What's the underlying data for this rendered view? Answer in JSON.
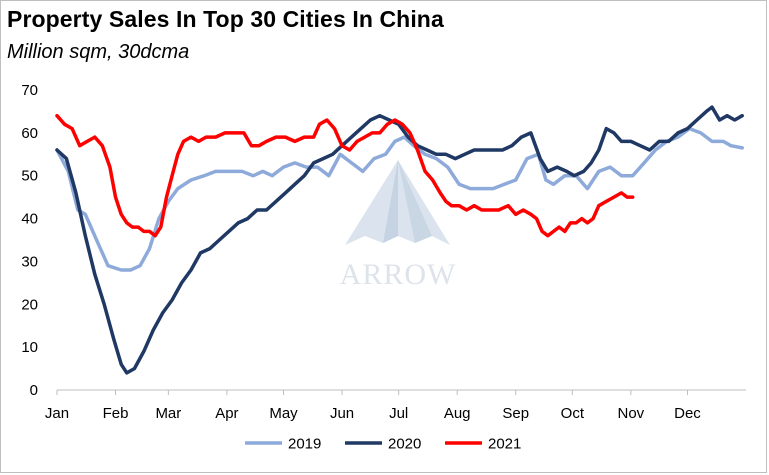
{
  "chart_data": {
    "type": "line",
    "title": "Property Sales In Top 30 Cities In China",
    "subtitle": "Million sqm, 30dcma",
    "x_tick_labels": [
      "Jan",
      "Feb",
      "Mar",
      "Apr",
      "May",
      "Jun",
      "Jul",
      "Aug",
      "Sep",
      "Oct",
      "Nov",
      "Dec"
    ],
    "ylim": [
      0,
      70
    ],
    "y_ticks": [
      0,
      10,
      20,
      30,
      40,
      50,
      60,
      70
    ],
    "grid": false,
    "legend_position": "bottom",
    "watermark": "ARROW",
    "series": [
      {
        "name": "2019",
        "color": "#8eaadb",
        "points": [
          [
            1,
            56
          ],
          [
            7,
            51
          ],
          [
            12,
            42
          ],
          [
            16,
            41
          ],
          [
            23,
            34
          ],
          [
            28,
            29
          ],
          [
            35,
            28
          ],
          [
            40,
            28
          ],
          [
            45,
            29
          ],
          [
            50,
            33
          ],
          [
            55,
            40
          ],
          [
            60,
            44
          ],
          [
            65,
            47
          ],
          [
            72,
            49
          ],
          [
            79,
            50
          ],
          [
            85,
            51
          ],
          [
            92,
            51
          ],
          [
            99,
            51
          ],
          [
            105,
            50
          ],
          [
            110,
            51
          ],
          [
            115,
            50
          ],
          [
            121,
            52
          ],
          [
            127,
            53
          ],
          [
            133,
            52
          ],
          [
            139,
            52
          ],
          [
            145,
            50
          ],
          [
            151,
            55
          ],
          [
            157,
            53
          ],
          [
            163,
            51
          ],
          [
            169,
            54
          ],
          [
            175,
            55
          ],
          [
            180,
            58
          ],
          [
            185,
            59
          ],
          [
            190,
            57
          ],
          [
            196,
            55
          ],
          [
            202,
            54
          ],
          [
            208,
            52
          ],
          [
            214,
            48
          ],
          [
            220,
            47
          ],
          [
            226,
            47
          ],
          [
            232,
            47
          ],
          [
            238,
            48
          ],
          [
            244,
            49
          ],
          [
            250,
            54
          ],
          [
            256,
            55
          ],
          [
            260,
            49
          ],
          [
            264,
            48
          ],
          [
            270,
            50
          ],
          [
            276,
            50
          ],
          [
            282,
            47
          ],
          [
            288,
            51
          ],
          [
            294,
            52
          ],
          [
            300,
            50
          ],
          [
            306,
            50
          ],
          [
            312,
            53
          ],
          [
            318,
            56
          ],
          [
            324,
            58
          ],
          [
            330,
            59
          ],
          [
            336,
            61
          ],
          [
            342,
            60
          ],
          [
            348,
            58
          ],
          [
            354,
            58
          ],
          [
            358,
            57
          ],
          [
            364,
            56.5
          ]
        ]
      },
      {
        "name": "2020",
        "color": "#1f3864",
        "points": [
          [
            1,
            56
          ],
          [
            6,
            54
          ],
          [
            11,
            46
          ],
          [
            16,
            36
          ],
          [
            21,
            27
          ],
          [
            26,
            20
          ],
          [
            31,
            12
          ],
          [
            35,
            6
          ],
          [
            38,
            4
          ],
          [
            42,
            5
          ],
          [
            47,
            9
          ],
          [
            52,
            14
          ],
          [
            57,
            18
          ],
          [
            62,
            21
          ],
          [
            67,
            25
          ],
          [
            72,
            28
          ],
          [
            77,
            32
          ],
          [
            82,
            33
          ],
          [
            87,
            35
          ],
          [
            92,
            37
          ],
          [
            97,
            39
          ],
          [
            102,
            40
          ],
          [
            107,
            42
          ],
          [
            112,
            42
          ],
          [
            117,
            44
          ],
          [
            122,
            46
          ],
          [
            127,
            48
          ],
          [
            132,
            50
          ],
          [
            137,
            53
          ],
          [
            142,
            54
          ],
          [
            147,
            55
          ],
          [
            152,
            57
          ],
          [
            157,
            59
          ],
          [
            162,
            61
          ],
          [
            167,
            63
          ],
          [
            172,
            64
          ],
          [
            177,
            63
          ],
          [
            182,
            62
          ],
          [
            187,
            59
          ],
          [
            192,
            57
          ],
          [
            197,
            56
          ],
          [
            202,
            55
          ],
          [
            207,
            55
          ],
          [
            212,
            54
          ],
          [
            217,
            55
          ],
          [
            222,
            56
          ],
          [
            227,
            56
          ],
          [
            232,
            56
          ],
          [
            237,
            56
          ],
          [
            242,
            57
          ],
          [
            247,
            59
          ],
          [
            252,
            60
          ],
          [
            257,
            54
          ],
          [
            261,
            51
          ],
          [
            266,
            52
          ],
          [
            271,
            51
          ],
          [
            275,
            50
          ],
          [
            280,
            51
          ],
          [
            284,
            53
          ],
          [
            288,
            56
          ],
          [
            292,
            61
          ],
          [
            296,
            60
          ],
          [
            300,
            58
          ],
          [
            305,
            58
          ],
          [
            310,
            57
          ],
          [
            315,
            56
          ],
          [
            320,
            58
          ],
          [
            325,
            58
          ],
          [
            330,
            60
          ],
          [
            335,
            61
          ],
          [
            340,
            63
          ],
          [
            345,
            65
          ],
          [
            348,
            66
          ],
          [
            352,
            63
          ],
          [
            356,
            64
          ],
          [
            360,
            63
          ],
          [
            364,
            64
          ]
        ]
      },
      {
        "name": "2021",
        "color": "#ff0000",
        "points": [
          [
            1,
            64
          ],
          [
            5,
            62
          ],
          [
            9,
            61
          ],
          [
            13,
            57
          ],
          [
            17,
            58
          ],
          [
            21,
            59
          ],
          [
            25,
            57
          ],
          [
            29,
            52
          ],
          [
            32,
            45
          ],
          [
            35,
            41
          ],
          [
            38,
            39
          ],
          [
            41,
            38
          ],
          [
            44,
            38
          ],
          [
            47,
            37
          ],
          [
            50,
            37
          ],
          [
            53,
            36
          ],
          [
            56,
            38
          ],
          [
            59,
            45
          ],
          [
            62,
            50
          ],
          [
            65,
            55
          ],
          [
            68,
            58
          ],
          [
            72,
            59
          ],
          [
            76,
            58
          ],
          [
            80,
            59
          ],
          [
            85,
            59
          ],
          [
            90,
            60
          ],
          [
            95,
            60
          ],
          [
            100,
            60
          ],
          [
            104,
            57
          ],
          [
            108,
            57
          ],
          [
            112,
            58
          ],
          [
            117,
            59
          ],
          [
            122,
            59
          ],
          [
            127,
            58
          ],
          [
            132,
            59
          ],
          [
            137,
            59
          ],
          [
            140,
            62
          ],
          [
            144,
            63
          ],
          [
            148,
            61
          ],
          [
            152,
            57
          ],
          [
            156,
            56
          ],
          [
            160,
            58
          ],
          [
            164,
            59
          ],
          [
            168,
            60
          ],
          [
            172,
            60
          ],
          [
            176,
            62
          ],
          [
            180,
            63
          ],
          [
            184,
            62
          ],
          [
            188,
            60
          ],
          [
            192,
            56
          ],
          [
            196,
            51
          ],
          [
            200,
            49
          ],
          [
            204,
            46
          ],
          [
            207,
            44
          ],
          [
            210,
            43
          ],
          [
            214,
            43
          ],
          [
            218,
            42
          ],
          [
            222,
            43
          ],
          [
            226,
            42
          ],
          [
            230,
            42
          ],
          [
            235,
            42
          ],
          [
            240,
            43
          ],
          [
            244,
            41
          ],
          [
            248,
            42
          ],
          [
            252,
            41
          ],
          [
            255,
            40
          ],
          [
            258,
            37
          ],
          [
            261,
            36
          ],
          [
            264,
            37
          ],
          [
            267,
            38
          ],
          [
            270,
            37
          ],
          [
            273,
            39
          ],
          [
            276,
            39
          ],
          [
            279,
            40
          ],
          [
            282,
            39
          ],
          [
            285,
            40
          ],
          [
            288,
            43
          ],
          [
            292,
            44
          ],
          [
            296,
            45
          ],
          [
            300,
            46
          ],
          [
            303,
            45
          ],
          [
            306,
            45
          ]
        ]
      }
    ]
  }
}
